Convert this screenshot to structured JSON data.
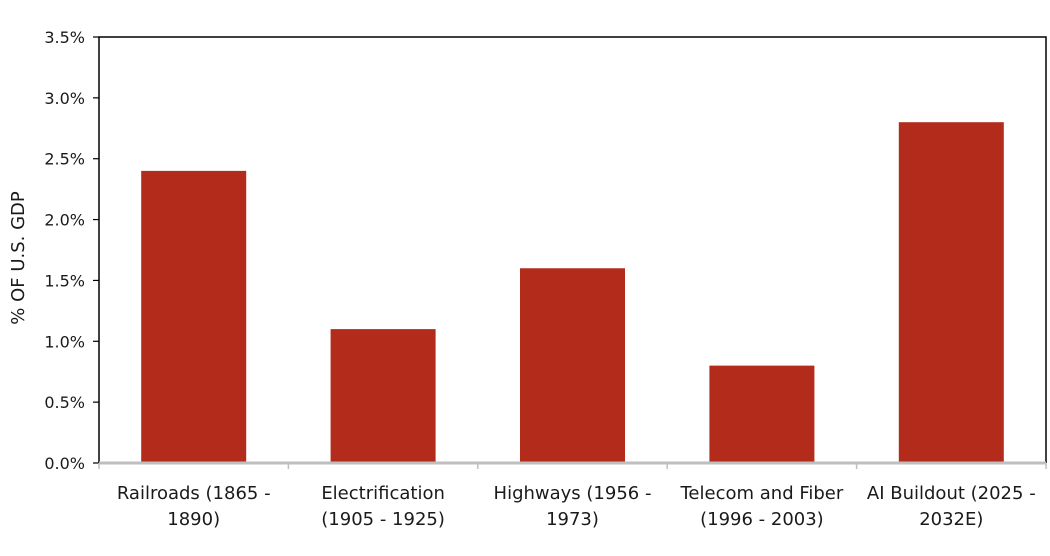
{
  "chart_data": {
    "type": "bar",
    "title": "",
    "xlabel": "",
    "ylabel": "% OF U.S. GDP",
    "categories": [
      [
        "Railroads (1865 -",
        "1890)"
      ],
      [
        "Electrification",
        "(1905 - 1925)"
      ],
      [
        "Highways (1956 -",
        "1973)"
      ],
      [
        "Telecom and Fiber",
        "(1996 - 2003)"
      ],
      [
        "AI Buildout (2025 -",
        "2032E)"
      ]
    ],
    "values": [
      2.4,
      1.1,
      1.6,
      0.8,
      2.8
    ],
    "ylim": [
      0,
      3.5
    ],
    "yticks": [
      0,
      0.5,
      1.0,
      1.5,
      2.0,
      2.5,
      3.0,
      3.5
    ],
    "ytick_labels": [
      "0.0%",
      "0.5%",
      "1.0%",
      "1.5%",
      "2.0%",
      "2.5%",
      "3.0%",
      "3.5%"
    ],
    "grid": false,
    "legend": "none",
    "colors": {
      "bar": "#b22b1b",
      "axis": "#000000",
      "baseline": "#bfbfbf"
    }
  }
}
